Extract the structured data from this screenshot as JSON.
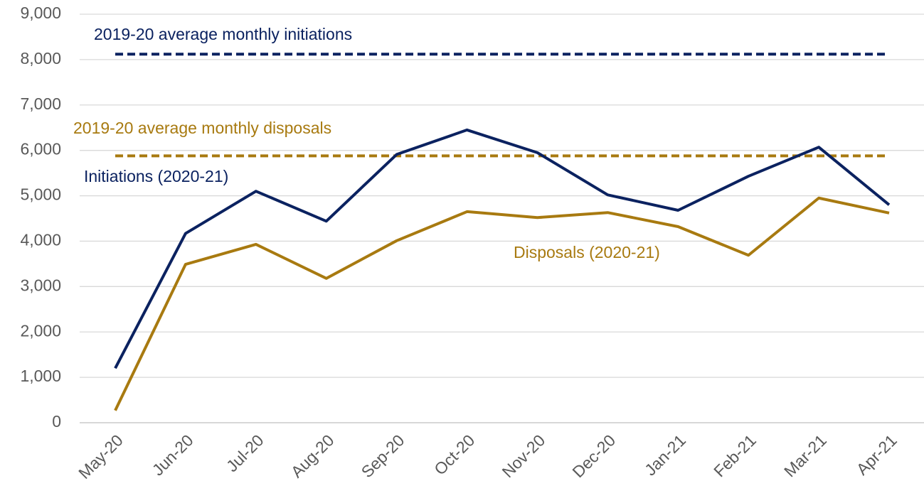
{
  "chart_data": {
    "type": "line",
    "categories": [
      "May-20",
      "Jun-20",
      "Jul-20",
      "Aug-20",
      "Sep-20",
      "Oct-20",
      "Nov-20",
      "Dec-20",
      "Jan-21",
      "Feb-21",
      "Mar-21",
      "Apr-21"
    ],
    "series": [
      {
        "name": "Initiations (2020-21)",
        "color": "#0b2260",
        "values": [
          1200,
          4170,
          5100,
          4440,
          5910,
          6450,
          5950,
          5020,
          4680,
          5430,
          6070,
          4800
        ]
      },
      {
        "name": "Disposals (2020-21)",
        "color": "#a87a10",
        "values": [
          270,
          3490,
          3930,
          3180,
          4010,
          4650,
          4520,
          4630,
          4320,
          3690,
          4950,
          4620
        ]
      }
    ],
    "reference_lines": [
      {
        "name": "2019-20 average monthly initiations",
        "color": "#0b2260",
        "value": 8120
      },
      {
        "name": "2019-20 average monthly disposals",
        "color": "#a87a10",
        "value": 5880
      }
    ],
    "ylim": [
      0,
      9000
    ],
    "yticks": [
      0,
      {
        "value": 1000,
        "label": "1,000"
      },
      {
        "value": 2000,
        "label": "2,000"
      },
      {
        "value": 3000,
        "label": "3,000"
      },
      {
        "value": 4000,
        "label": "4,000"
      },
      {
        "value": 5000,
        "label": "5,000"
      },
      {
        "value": 6000,
        "label": "6,000"
      },
      {
        "value": 7000,
        "label": "7,000"
      },
      {
        "value": 8000,
        "label": "8,000"
      },
      {
        "value": 9000,
        "label": "9,000"
      }
    ],
    "grid": true
  }
}
